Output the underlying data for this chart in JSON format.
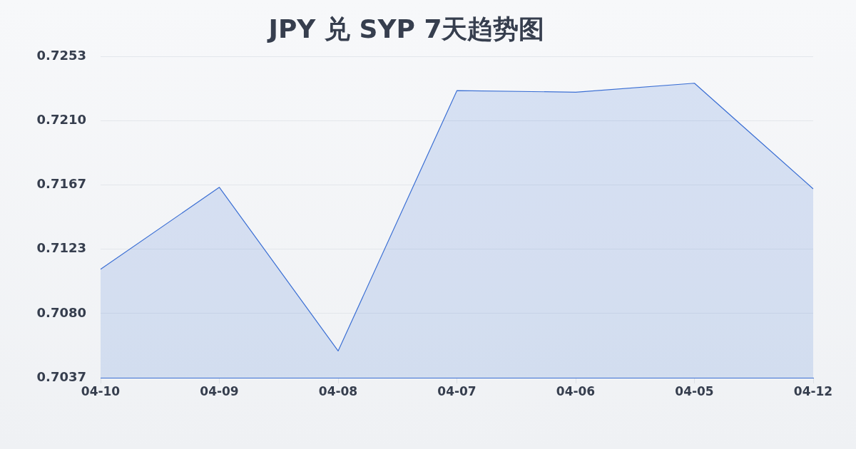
{
  "chart_data": {
    "type": "area",
    "title": "JPY 兑 SYP 7天趋势图",
    "categories": [
      "04-10",
      "04-09",
      "04-08",
      "04-07",
      "04-06",
      "04-05",
      "04-12"
    ],
    "series": [
      {
        "color": "#3b6fd4",
        "values": [
          0.711,
          0.7165,
          0.7055,
          0.723,
          0.7229,
          0.7235,
          0.7164
        ]
      }
    ],
    "ylim": [
      0.7037,
      0.7253
    ],
    "yticks": [
      0.7037,
      {
        "value": 0.70802,
        "label": "0.7080"
      },
      {
        "value": 0.71234,
        "label": "0.7123"
      },
      {
        "value": 0.71666,
        "label": "0.7167"
      },
      {
        "value": 0.72098,
        "label": "0.7210"
      },
      0.7253
    ],
    "grid": "y",
    "marker": "none",
    "legend": false
  }
}
